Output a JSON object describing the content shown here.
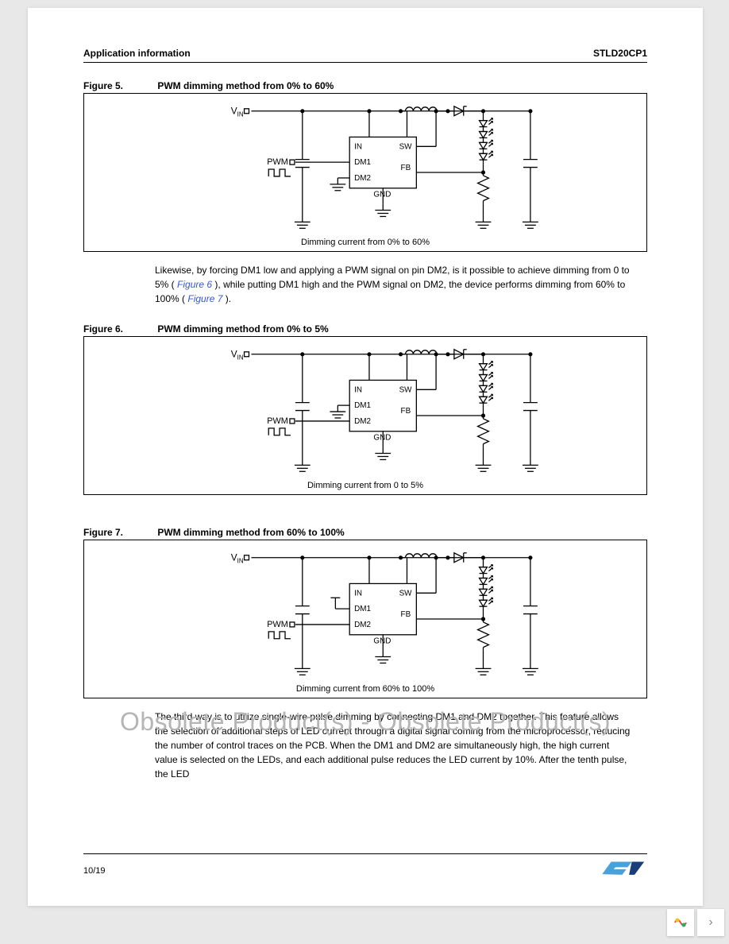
{
  "header": {
    "section": "Application information",
    "part": "STLD20CP1"
  },
  "watermark": "Obsolete Product(s) - Obsolete Product(s)",
  "footer": {
    "page": "10/19"
  },
  "para1": {
    "t1": "Likewise, by forcing DM1 low and applying a PWM signal on pin DM2, is it possible to achieve dimming from 0 to 5% (",
    "link1": "Figure 6",
    "t2": "), while putting DM1 high and the PWM signal on DM2, the device performs dimming from 60% to 100% (",
    "link2": "Figure 7",
    "t3": ")."
  },
  "para2": "The third way is to utilize single-wire pulse dimming by connecting DM1 and DM2 together. This feature allows the selection of additional steps of LED current through a digital signal coming from the microprocessor, reducing the number of control traces on the PCB. When the DM1 and DM2 are simultaneously high, the high current value is selected on the LEDs, and each additional pulse reduces the LED current by 10%. After the tenth pulse, the LED",
  "figures": [
    {
      "no": "Figure 5.",
      "title": "PWM dimming method from 0% to 60%",
      "caption": "Dimming current from 0% to 60%",
      "pwm_on": "DM1",
      "dm1_tied": "",
      "dm2_tied": "low"
    },
    {
      "no": "Figure 6.",
      "title": "PWM dimming method from 0% to 5%",
      "caption": "Dimming current from 0 to  5%",
      "pwm_on": "DM2",
      "dm1_tied": "low",
      "dm2_tied": ""
    },
    {
      "no": "Figure 7.",
      "title": "PWM dimming method from 60% to 100%",
      "caption": "Dimming current from 60% to 100%",
      "pwm_on": "DM2",
      "dm1_tied": "high",
      "dm2_tied": ""
    }
  ],
  "schematic": {
    "labels": {
      "vin": "V",
      "vin_sub": "IN",
      "pwm": "PWM",
      "pins": {
        "in": "IN",
        "sw": "SW",
        "dm1": "DM1",
        "dm2": "DM2",
        "fb": "FB",
        "gnd": "GND"
      }
    },
    "colors": {
      "stroke": "#000000",
      "fill_none": "none"
    },
    "stroke_width": 1.3
  },
  "nav": {
    "next": "›"
  }
}
